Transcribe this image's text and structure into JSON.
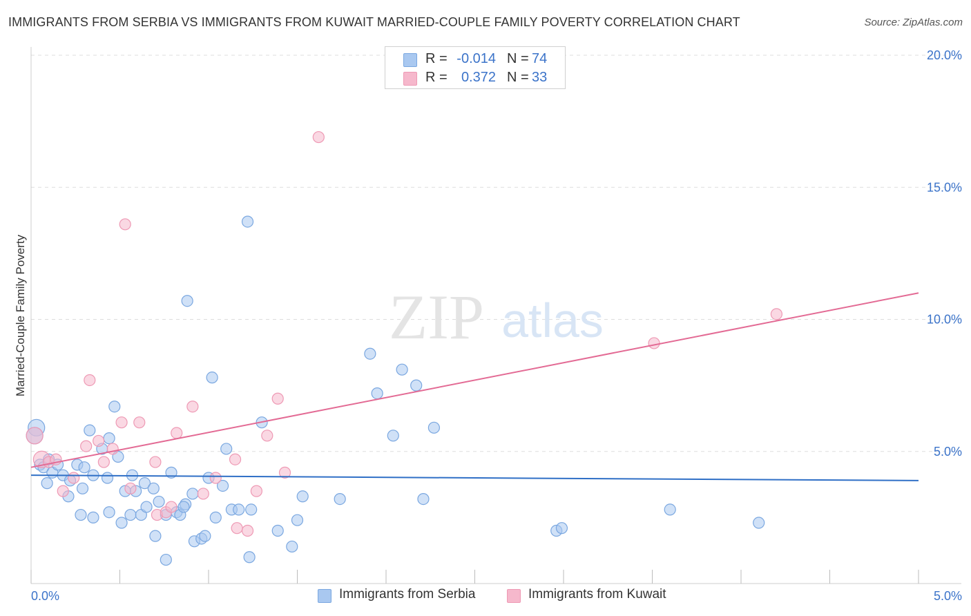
{
  "title": "IMMIGRANTS FROM SERBIA VS IMMIGRANTS FROM KUWAIT MARRIED-COUPLE FAMILY POVERTY CORRELATION CHART",
  "source": "Source: ZipAtlas.com",
  "watermark": {
    "zip": "ZIP",
    "atlas": "atlas"
  },
  "colors": {
    "serbia_fill": "#a9c8f0",
    "serbia_stroke": "#7aa7e0",
    "serbia_line": "#2f6fc6",
    "kuwait_fill": "#f6b8cc",
    "kuwait_stroke": "#ee99b4",
    "kuwait_line": "#e36a94",
    "tick_text": "#3b73c9",
    "grid": "#dddddd"
  },
  "legend_top": {
    "serbia": {
      "r_label": "R =",
      "r_value": "-0.014",
      "n_label": "N =",
      "n_value": "74"
    },
    "kuwait": {
      "r_label": "R =",
      "r_value": "0.372",
      "n_label": "N =",
      "n_value": "33"
    }
  },
  "chart_data": {
    "type": "scatter",
    "title": "IMMIGRANTS FROM SERBIA VS IMMIGRANTS FROM KUWAIT MARRIED-COUPLE FAMILY POVERTY CORRELATION CHART",
    "xlabel": "",
    "ylabel": "Married-Couple Family Poverty",
    "xlim": [
      0,
      5
    ],
    "ylim": [
      0,
      20
    ],
    "x_tick_labels": [
      "0.0%",
      "5.0%"
    ],
    "y_ticks": [
      5,
      10,
      15,
      20
    ],
    "y_tick_labels": [
      "5.0%",
      "10.0%",
      "15.0%",
      "20.0%"
    ],
    "grid": true,
    "series": [
      {
        "name": "Immigrants from Serbia",
        "color_key": "serbia",
        "r": -0.014,
        "n": 74,
        "trend": {
          "x": [
            0,
            5
          ],
          "y": [
            4.1,
            3.9
          ]
        },
        "points": [
          {
            "x": 0.03,
            "y": 5.9,
            "big": true
          },
          {
            "x": 0.02,
            "y": 5.6,
            "big": true
          },
          {
            "x": 0.05,
            "y": 4.5
          },
          {
            "x": 0.07,
            "y": 4.4
          },
          {
            "x": 0.1,
            "y": 4.7
          },
          {
            "x": 0.12,
            "y": 4.2
          },
          {
            "x": 0.15,
            "y": 4.5
          },
          {
            "x": 0.18,
            "y": 4.1
          },
          {
            "x": 0.09,
            "y": 3.8
          },
          {
            "x": 0.22,
            "y": 3.9
          },
          {
            "x": 0.26,
            "y": 4.5
          },
          {
            "x": 0.3,
            "y": 4.4
          },
          {
            "x": 0.35,
            "y": 4.1
          },
          {
            "x": 0.43,
            "y": 4.0
          },
          {
            "x": 0.49,
            "y": 4.8
          },
          {
            "x": 0.4,
            "y": 5.1
          },
          {
            "x": 0.33,
            "y": 5.8
          },
          {
            "x": 0.44,
            "y": 5.5
          },
          {
            "x": 0.47,
            "y": 6.7
          },
          {
            "x": 0.29,
            "y": 3.6
          },
          {
            "x": 0.21,
            "y": 3.3
          },
          {
            "x": 0.28,
            "y": 2.6
          },
          {
            "x": 0.44,
            "y": 2.7
          },
          {
            "x": 0.51,
            "y": 2.3
          },
          {
            "x": 0.56,
            "y": 2.6
          },
          {
            "x": 0.62,
            "y": 2.6
          },
          {
            "x": 0.65,
            "y": 2.9
          },
          {
            "x": 0.72,
            "y": 3.1
          },
          {
            "x": 0.76,
            "y": 2.6
          },
          {
            "x": 0.82,
            "y": 2.7
          },
          {
            "x": 0.87,
            "y": 3.0
          },
          {
            "x": 0.53,
            "y": 3.5
          },
          {
            "x": 0.59,
            "y": 3.5
          },
          {
            "x": 0.64,
            "y": 3.8
          },
          {
            "x": 0.69,
            "y": 3.6
          },
          {
            "x": 0.57,
            "y": 4.1
          },
          {
            "x": 0.79,
            "y": 4.2
          },
          {
            "x": 0.7,
            "y": 1.8
          },
          {
            "x": 0.76,
            "y": 0.9
          },
          {
            "x": 0.84,
            "y": 2.6
          },
          {
            "x": 0.86,
            "y": 2.9
          },
          {
            "x": 0.91,
            "y": 3.4
          },
          {
            "x": 0.92,
            "y": 1.6
          },
          {
            "x": 0.96,
            "y": 1.7
          },
          {
            "x": 0.98,
            "y": 1.8
          },
          {
            "x": 1.0,
            "y": 4.0
          },
          {
            "x": 1.04,
            "y": 2.5
          },
          {
            "x": 1.08,
            "y": 3.7
          },
          {
            "x": 1.1,
            "y": 5.1
          },
          {
            "x": 1.13,
            "y": 2.8
          },
          {
            "x": 1.17,
            "y": 2.8
          },
          {
            "x": 1.23,
            "y": 1.0
          },
          {
            "x": 1.3,
            "y": 6.1
          },
          {
            "x": 1.39,
            "y": 2.0
          },
          {
            "x": 1.47,
            "y": 1.4
          },
          {
            "x": 1.5,
            "y": 2.4
          },
          {
            "x": 1.53,
            "y": 3.3
          },
          {
            "x": 1.74,
            "y": 3.2
          },
          {
            "x": 1.24,
            "y": 2.8
          },
          {
            "x": 1.91,
            "y": 8.7
          },
          {
            "x": 1.95,
            "y": 7.2
          },
          {
            "x": 2.04,
            "y": 5.6
          },
          {
            "x": 2.09,
            "y": 8.1
          },
          {
            "x": 2.17,
            "y": 7.5
          },
          {
            "x": 2.21,
            "y": 3.2
          },
          {
            "x": 2.27,
            "y": 5.9
          },
          {
            "x": 1.02,
            "y": 7.8
          },
          {
            "x": 0.88,
            "y": 10.7
          },
          {
            "x": 1.22,
            "y": 13.7
          },
          {
            "x": 2.96,
            "y": 2.0
          },
          {
            "x": 2.99,
            "y": 2.1
          },
          {
            "x": 3.6,
            "y": 2.8
          },
          {
            "x": 4.1,
            "y": 2.3
          },
          {
            "x": 0.35,
            "y": 2.5
          }
        ]
      },
      {
        "name": "Immigrants from Kuwait",
        "color_key": "kuwait",
        "r": 0.372,
        "n": 33,
        "trend": {
          "x": [
            0,
            5
          ],
          "y": [
            4.4,
            11.0
          ]
        },
        "points": [
          {
            "x": 0.02,
            "y": 5.6,
            "big": true
          },
          {
            "x": 0.06,
            "y": 4.7,
            "big": true
          },
          {
            "x": 0.1,
            "y": 4.6
          },
          {
            "x": 0.14,
            "y": 4.7
          },
          {
            "x": 0.18,
            "y": 3.5
          },
          {
            "x": 0.24,
            "y": 4.0
          },
          {
            "x": 0.31,
            "y": 5.2
          },
          {
            "x": 0.38,
            "y": 5.4
          },
          {
            "x": 0.41,
            "y": 4.6
          },
          {
            "x": 0.46,
            "y": 5.1
          },
          {
            "x": 0.51,
            "y": 6.1
          },
          {
            "x": 0.61,
            "y": 6.1
          },
          {
            "x": 0.56,
            "y": 3.6
          },
          {
            "x": 0.7,
            "y": 4.6
          },
          {
            "x": 0.71,
            "y": 2.6
          },
          {
            "x": 0.76,
            "y": 2.7
          },
          {
            "x": 0.79,
            "y": 2.9
          },
          {
            "x": 0.82,
            "y": 5.7
          },
          {
            "x": 0.91,
            "y": 6.7
          },
          {
            "x": 0.97,
            "y": 3.4
          },
          {
            "x": 1.04,
            "y": 4.0
          },
          {
            "x": 1.15,
            "y": 4.7
          },
          {
            "x": 1.16,
            "y": 2.1
          },
          {
            "x": 1.22,
            "y": 2.0
          },
          {
            "x": 1.27,
            "y": 3.5
          },
          {
            "x": 1.33,
            "y": 5.6
          },
          {
            "x": 1.39,
            "y": 7.0
          },
          {
            "x": 1.43,
            "y": 4.2
          },
          {
            "x": 0.33,
            "y": 7.7
          },
          {
            "x": 0.53,
            "y": 13.6
          },
          {
            "x": 1.62,
            "y": 16.9
          },
          {
            "x": 3.51,
            "y": 9.1
          },
          {
            "x": 4.2,
            "y": 10.2
          }
        ]
      }
    ]
  },
  "legend_bottom": {
    "serbia_label": "Immigrants from Serbia",
    "kuwait_label": "Immigrants from Kuwait"
  }
}
